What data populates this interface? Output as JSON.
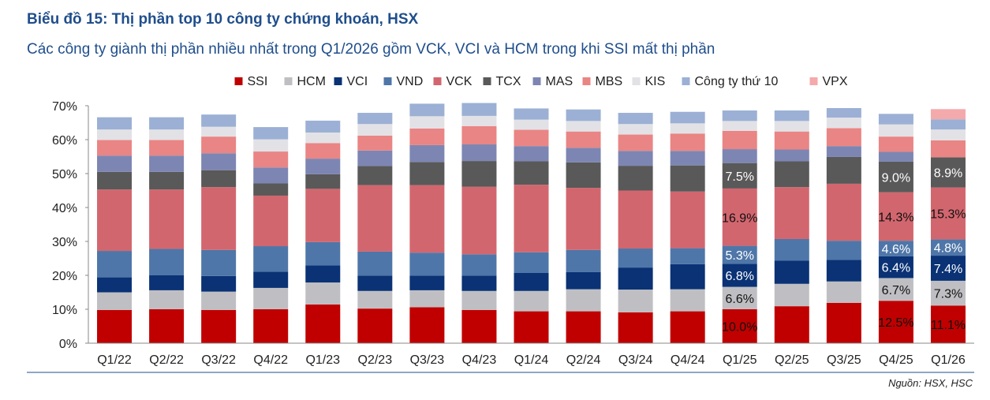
{
  "header": {
    "title": "Biểu đồ 15: Thị phần top 10 công ty chứng khoán, HSX",
    "subtitle": "Các công ty giành thị phần nhiều nhất trong Q1/2026 gồm VCK, VCI và HCM trong khi SSI mất thị phần"
  },
  "footer": {
    "source": "Nguồn: HSX, HSC"
  },
  "chart_data": {
    "type": "bar",
    "stacked": true,
    "title": "Biểu đồ 15: Thị phần top 10 công ty chứng khoán, HSX",
    "subtitle": "Các công ty giành thị phần nhiều nhất trong Q1/2026 gồm VCK, VCI và HCM trong khi SSI mất thị phần",
    "xlabel": "",
    "ylabel": "",
    "ylim": [
      0,
      70
    ],
    "yticks": [
      "0%",
      "10%",
      "20%",
      "30%",
      "40%",
      "50%",
      "60%",
      "70%"
    ],
    "grid": false,
    "legend_position": "top",
    "categories": [
      "Q1/22",
      "Q2/22",
      "Q3/22",
      "Q4/22",
      "Q1/23",
      "Q2/23",
      "Q3/23",
      "Q4/23",
      "Q1/24",
      "Q2/24",
      "Q3/24",
      "Q4/24",
      "Q1/25",
      "Q2/25",
      "Q3/25",
      "Q4/25",
      "Q1/26"
    ],
    "series": [
      {
        "name": "SSI",
        "color": "#c00000",
        "values": [
          9.8,
          10.0,
          9.8,
          10.0,
          11.4,
          10.2,
          10.6,
          9.8,
          9.4,
          9.4,
          9.1,
          9.4,
          10.0,
          10.9,
          11.9,
          12.5,
          11.1
        ]
      },
      {
        "name": "HCM",
        "color": "#bfbfc3",
        "values": [
          5.2,
          5.6,
          5.4,
          6.3,
          6.5,
          5.2,
          5.0,
          5.6,
          6.0,
          6.5,
          6.7,
          6.5,
          6.6,
          6.6,
          6.3,
          6.7,
          7.3
        ]
      },
      {
        "name": "VCI",
        "color": "#0a3275",
        "values": [
          4.4,
          4.4,
          4.6,
          4.8,
          5.0,
          4.5,
          4.3,
          4.5,
          5.3,
          5.1,
          6.5,
          7.4,
          6.8,
          6.8,
          6.4,
          6.4,
          7.4
        ]
      },
      {
        "name": "VND",
        "color": "#4f76a8",
        "values": [
          7.8,
          7.8,
          7.7,
          7.5,
          6.9,
          7.1,
          6.8,
          6.3,
          6.1,
          6.5,
          5.6,
          4.7,
          5.3,
          6.4,
          5.6,
          4.6,
          4.8
        ]
      },
      {
        "name": "VCK",
        "color": "#d2666e",
        "values": [
          18.1,
          17.5,
          18.5,
          14.9,
          15.7,
          19.6,
          19.9,
          19.9,
          19.9,
          18.3,
          17.1,
          16.7,
          16.9,
          15.3,
          16.8,
          14.3,
          15.3
        ]
      },
      {
        "name": "TCX",
        "color": "#595959",
        "values": [
          5.2,
          5.2,
          5.0,
          3.6,
          4.3,
          5.6,
          6.8,
          7.6,
          6.9,
          7.5,
          7.3,
          7.7,
          7.5,
          7.6,
          7.9,
          9.0,
          8.9
        ]
      },
      {
        "name": "MAS",
        "color": "#7d86b2",
        "values": [
          4.8,
          4.8,
          5.0,
          4.7,
          4.6,
          4.6,
          5.0,
          4.9,
          4.5,
          4.3,
          4.4,
          4.3,
          4.1,
          3.5,
          3.2,
          2.9,
          0
        ]
      },
      {
        "name": "MBS",
        "color": "#e98584",
        "values": [
          4.6,
          4.6,
          4.9,
          4.7,
          4.6,
          4.4,
          4.9,
          5.4,
          4.8,
          4.8,
          4.8,
          5.1,
          5.4,
          5.3,
          5.3,
          4.5,
          5.0
        ]
      },
      {
        "name": "KIS",
        "color": "#e2e2e6",
        "values": [
          3.1,
          3.1,
          2.9,
          3.6,
          3.1,
          3.4,
          3.6,
          3.0,
          3.0,
          3.1,
          3.1,
          3.0,
          2.9,
          3.1,
          3.1,
          3.6,
          3.2
        ]
      },
      {
        "name": "Công ty thứ 10",
        "color": "#9bb0d4",
        "values": [
          3.6,
          3.6,
          3.6,
          3.6,
          3.5,
          3.3,
          3.7,
          3.8,
          3.3,
          3.4,
          3.3,
          3.4,
          3.1,
          3.1,
          2.8,
          3.1,
          3.0
        ]
      },
      {
        "name": "VPX",
        "color": "#f4a9ab",
        "values": [
          0,
          0,
          0,
          0,
          0,
          0,
          0,
          0,
          0,
          0,
          0,
          0,
          0,
          0,
          0,
          0,
          3.0
        ]
      }
    ],
    "data_labels": [
      {
        "category": "Q1/25",
        "series": "SSI",
        "text": "10.0%"
      },
      {
        "category": "Q1/25",
        "series": "HCM",
        "text": "6.6%"
      },
      {
        "category": "Q1/25",
        "series": "VCI",
        "text": "6.8%"
      },
      {
        "category": "Q1/25",
        "series": "VND",
        "text": "5.3%"
      },
      {
        "category": "Q1/25",
        "series": "VCK",
        "text": "16.9%"
      },
      {
        "category": "Q1/25",
        "series": "TCX",
        "text": "7.5%"
      },
      {
        "category": "Q4/25",
        "series": "SSI",
        "text": "12.5%"
      },
      {
        "category": "Q4/25",
        "series": "HCM",
        "text": "6.7%"
      },
      {
        "category": "Q4/25",
        "series": "VCI",
        "text": "6.4%"
      },
      {
        "category": "Q4/25",
        "series": "VND",
        "text": "4.6%"
      },
      {
        "category": "Q4/25",
        "series": "VCK",
        "text": "14.3%"
      },
      {
        "category": "Q4/25",
        "series": "TCX",
        "text": "9.0%"
      },
      {
        "category": "Q1/26",
        "series": "SSI",
        "text": "11.1%"
      },
      {
        "category": "Q1/26",
        "series": "HCM",
        "text": "7.3%"
      },
      {
        "category": "Q1/26",
        "series": "VCI",
        "text": "7.4%"
      },
      {
        "category": "Q1/26",
        "series": "VND",
        "text": "4.8%"
      },
      {
        "category": "Q1/26",
        "series": "VCK",
        "text": "15.3%"
      },
      {
        "category": "Q1/26",
        "series": "TCX",
        "text": "8.9%"
      }
    ],
    "highlight_colors": {
      "title": "#1f4e8c",
      "rule": "#1f4e8c"
    }
  }
}
